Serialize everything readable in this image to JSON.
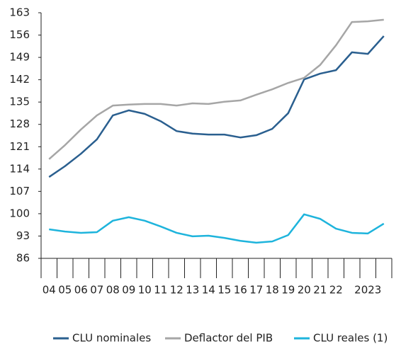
{
  "chart_data": {
    "type": "line",
    "categories": [
      "04",
      "05",
      "06",
      "07",
      "08",
      "09",
      "10",
      "11",
      "12",
      "13",
      "14",
      "15",
      "16",
      "17",
      "18",
      "19",
      "20",
      "21",
      "22",
      null,
      "2023",
      null
    ],
    "series": [
      {
        "name": "CLU nominales",
        "color": "#2a5f8f",
        "values": [
          111.5,
          114.9,
          118.8,
          123.3,
          130.8,
          132.4,
          131.3,
          129,
          125.9,
          125.1,
          124.8,
          124.8,
          123.9,
          124.6,
          126.6,
          131.5,
          142.1,
          143.9,
          145,
          150.6,
          150.1,
          155.7
        ]
      },
      {
        "name": "Deflactor del PIB",
        "color": "#a6a6a6",
        "values": [
          117.1,
          121.5,
          126.4,
          130.8,
          133.9,
          134.2,
          134.4,
          134.4,
          133.9,
          134.6,
          134.4,
          135.1,
          135.5,
          137.3,
          139,
          141,
          142.6,
          146.6,
          152.8,
          160.1,
          160.3,
          160.8
        ]
      },
      {
        "name": "CLU reales (1)",
        "color": "#1eb4dc",
        "values": [
          95.1,
          94.4,
          94,
          94.2,
          97.8,
          98.9,
          97.8,
          96,
          94,
          92.9,
          93.1,
          92.4,
          91.5,
          90.9,
          91.3,
          93.3,
          99.8,
          98.4,
          95.3,
          94,
          93.8,
          96.9
        ]
      }
    ],
    "ylim": [
      86,
      163
    ],
    "yticks": [
      86,
      93,
      100,
      107,
      114,
      121,
      128,
      135,
      142,
      149,
      156,
      163
    ],
    "grid": false,
    "legend": "bottom"
  }
}
